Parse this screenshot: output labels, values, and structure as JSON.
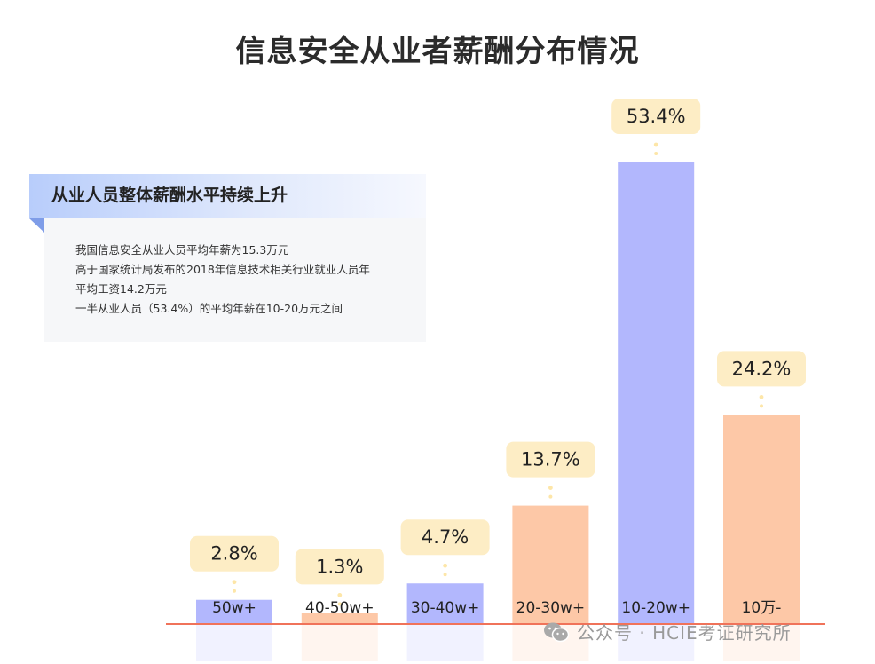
{
  "title": "信息安全从业者薪酬分布情况",
  "info": {
    "heading": "从业人员整体薪酬水平持续上升",
    "lines": [
      "我国信息安全从业人员平均年薪为15.3万元",
      "高于国家统计局发布的2018年信息技术相关行业就业人员年",
      "平均工资14.2万元",
      "一半从业人员（53.4%）的平均年薪在10-20万元之间"
    ]
  },
  "colors": {
    "blue_bar": "#b2b7fd",
    "orange_bar": "#fdc8a7",
    "label_bg": "#fdedc5",
    "baseline": "#f0735a"
  },
  "chart_data": {
    "type": "bar",
    "title": "信息安全从业者薪酬分布情况",
    "categories": [
      "50w+",
      "40-50w+",
      "30-40w+",
      "20-30w+",
      "10-20w+",
      "10万-"
    ],
    "values": [
      2.8,
      1.3,
      4.7,
      13.7,
      53.4,
      24.2
    ],
    "value_labels": [
      "2.8%",
      "1.3%",
      "4.7%",
      "13.7%",
      "53.4%",
      "24.2%"
    ],
    "bar_colors": [
      "blue",
      "orange",
      "blue",
      "orange",
      "blue",
      "orange"
    ],
    "ylim": [
      0,
      53.4
    ],
    "xlabel": "",
    "ylabel": ""
  },
  "watermark": "公众号 · HCIE考证研究所"
}
